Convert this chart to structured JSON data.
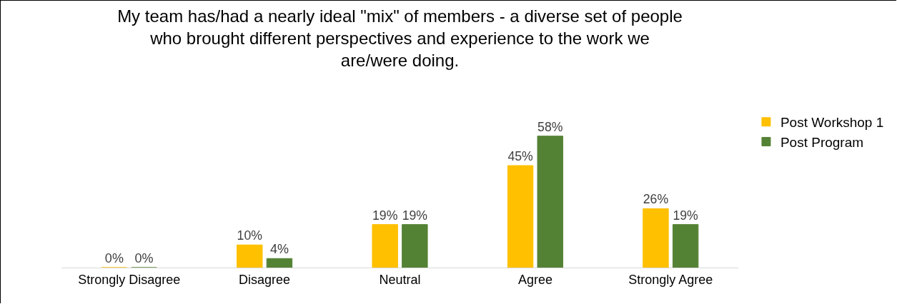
{
  "chart_data": {
    "type": "bar",
    "title": "My team has/had a nearly ideal \"mix\" of members - a diverse set of people\nwho brought different perspectives and experience to the work we\nare/were doing.",
    "categories": [
      "Strongly Disagree",
      "Disagree",
      "Neutral",
      "Agree",
      "Strongly Agree"
    ],
    "series": [
      {
        "name": "Post Workshop 1",
        "color": "#ffc000",
        "values": [
          0,
          10,
          19,
          45,
          26
        ],
        "value_labels": [
          "0%",
          "10%",
          "19%",
          "45%",
          "26%"
        ]
      },
      {
        "name": "Post Program",
        "color": "#548235",
        "values": [
          0,
          4,
          19,
          58,
          19
        ],
        "value_labels": [
          "0%",
          "4%",
          "19%",
          "58%",
          "19%"
        ]
      }
    ],
    "legend": "right",
    "grid": false
  }
}
